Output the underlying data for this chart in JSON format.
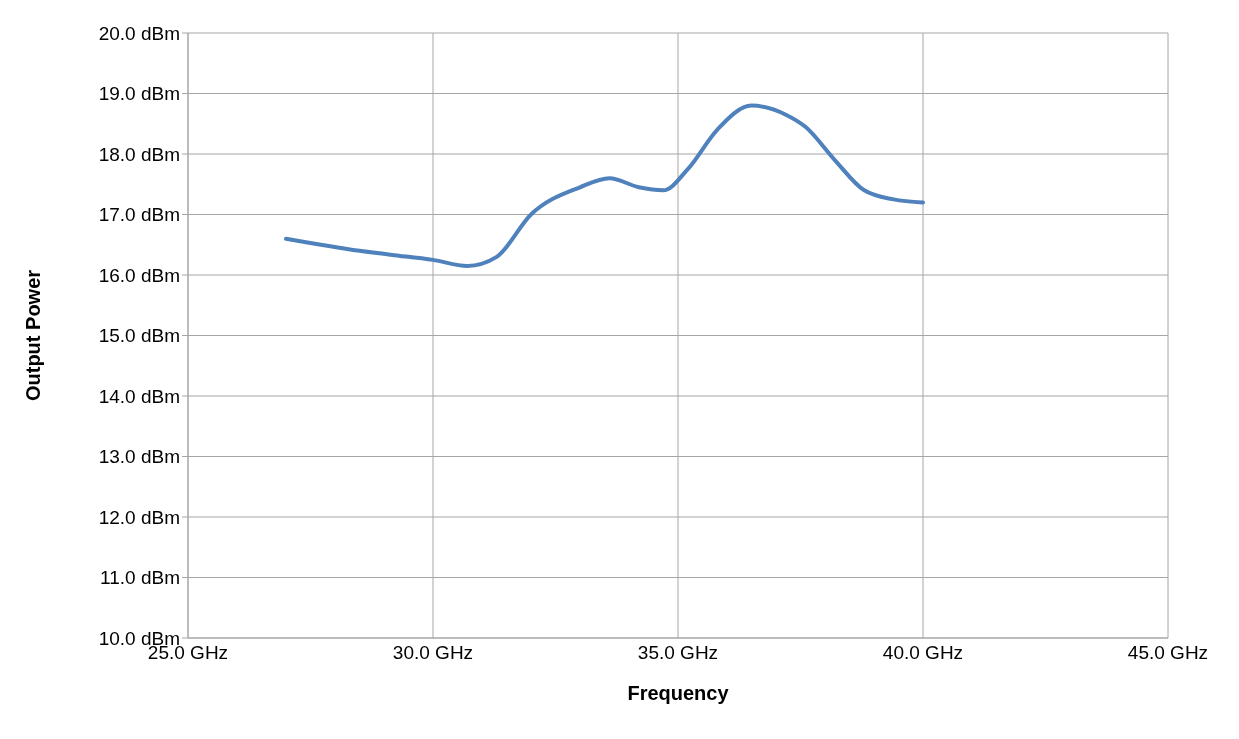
{
  "chart_data": {
    "type": "line",
    "xlabel": "Frequency",
    "ylabel": "Output Power",
    "x": [
      27,
      28.5,
      29.5,
      30,
      30.7,
      31.3,
      32,
      33,
      33.6,
      34.2,
      34.7,
      35.2,
      35.8,
      36.5,
      37.2,
      37.6,
      38.2,
      38.8,
      39.4,
      40
    ],
    "series": [
      {
        "color": "#4f81bd",
        "values": [
          16.6,
          16.4,
          16.3,
          16.25,
          16.15,
          16.3,
          17.0,
          17.45,
          17.6,
          17.45,
          17.4,
          17.75,
          18.4,
          18.8,
          18.65,
          18.45,
          17.9,
          17.4,
          17.25,
          17.2
        ]
      }
    ],
    "xlim": [
      25,
      45
    ],
    "xticks": [
      {
        "value": 25,
        "label": "25.0 GHz"
      },
      {
        "value": 30,
        "label": "30.0 GHz"
      },
      {
        "value": 35,
        "label": "35.0 GHz"
      },
      {
        "value": 40,
        "label": "40.0 GHz"
      },
      {
        "value": 45,
        "label": "45.0 GHz"
      }
    ],
    "ylim": [
      10,
      20
    ],
    "yticks": [
      {
        "value": 10,
        "label": "10.0 dBm"
      },
      {
        "value": 11,
        "label": "11.0 dBm"
      },
      {
        "value": 12,
        "label": "12.0 dBm"
      },
      {
        "value": 13,
        "label": "13.0 dBm"
      },
      {
        "value": 14,
        "label": "14.0 dBm"
      },
      {
        "value": 15,
        "label": "15.0 dBm"
      },
      {
        "value": 16,
        "label": "16.0 dBm"
      },
      {
        "value": 17,
        "label": "17.0 dBm"
      },
      {
        "value": 18,
        "label": "18.0 dBm"
      },
      {
        "value": 19,
        "label": "19.0 dBm"
      },
      {
        "value": 20,
        "label": "20.0 dBm"
      }
    ],
    "grid": true,
    "legend": false,
    "marker": "none",
    "line_style": "solid"
  }
}
